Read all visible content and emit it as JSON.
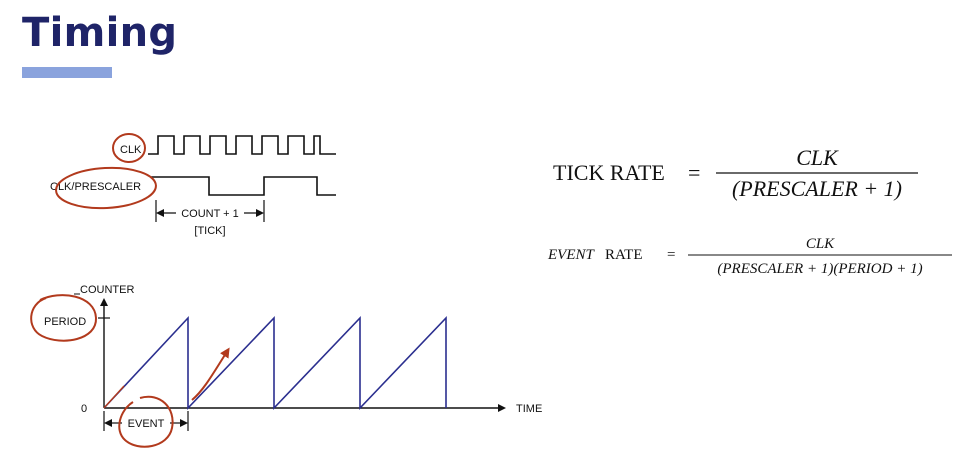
{
  "title": "Timing",
  "clock_diagram": {
    "clk_label": "CLK",
    "prescaler_label": "CLK/PRESCALER",
    "count_label": "COUNT + 1",
    "tick_label": "[TICK]"
  },
  "counter_diagram": {
    "y_axis_label": "COUNTER",
    "period_label": "PERIOD",
    "zero_label": "0",
    "x_axis_label": "TIME",
    "event_label": "EVENT"
  },
  "equations": {
    "tick_rate": {
      "lhs": "TICK RATE",
      "equals": "=",
      "numerator": "CLK",
      "denominator": "(PRESCALER + 1)"
    },
    "event_rate": {
      "lhs_italic": "EVENT",
      "lhs_rest": " RATE",
      "equals": "=",
      "numerator": "CLK",
      "denominator": "(PRESCALER + 1)(PERIOD + 1)"
    }
  },
  "colors": {
    "title": "#1f2468",
    "accent_bar": "#8aa3dd",
    "sawtooth": "#2b2f8f",
    "annotation": "#b23a1d"
  }
}
